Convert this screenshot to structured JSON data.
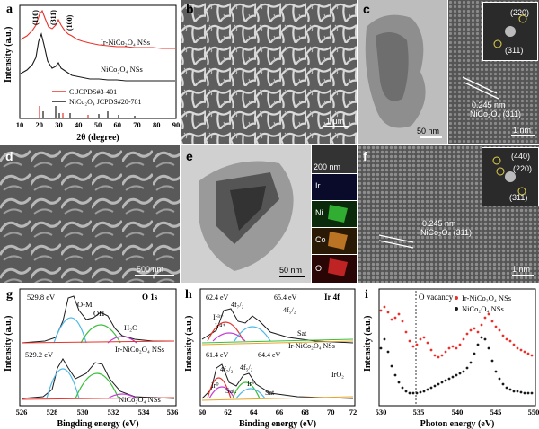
{
  "panels": {
    "a": {
      "label": "a",
      "ylabel": "Intensity (a.u.)",
      "xlabel": "2θ (degree)",
      "xticks": [
        "10",
        "20",
        "30",
        "40",
        "50",
        "60",
        "70",
        "80",
        "90"
      ],
      "peaks": [
        "(110)",
        "(311)",
        "(100)"
      ],
      "series": [
        "Ir-NiCo₂O₄ NSs",
        "NiCo₂O₄ NSs"
      ],
      "refs": [
        "C JCPDS#3-401",
        "NiCo₂O₄ JCPDS#20-781"
      ],
      "colors": {
        "ir": "#e8322b",
        "nico": "#1a1a1a",
        "ref_c": "#e8322b",
        "ref_n": "#1a1a1a"
      }
    },
    "b": {
      "label": "b",
      "scale": "1 μm"
    },
    "c": {
      "label": "c",
      "scale_left": "50 nm",
      "scale_right": "1 nm",
      "lattice": "0.245 nm",
      "plane": "NiCo₂O₄ (311)",
      "fft": [
        "(220)",
        "(311)"
      ]
    },
    "d": {
      "label": "d",
      "scale": "500 nm"
    },
    "e": {
      "label": "e",
      "scale": "50 nm",
      "map_scale": "200 nm",
      "maps": [
        {
          "el": "Ir",
          "color": "#3a56c9"
        },
        {
          "el": "Ni",
          "color": "#3bcf3b"
        },
        {
          "el": "Co",
          "color": "#e08a2c"
        },
        {
          "el": "O",
          "color": "#e52a2a"
        }
      ]
    },
    "f": {
      "label": "f",
      "scale": "1 nm",
      "lattice": "0.245 nm",
      "plane": "NiCo₂O₄ (311)",
      "fft": [
        "(440)",
        "(220)",
        "(311)"
      ]
    },
    "g": {
      "label": "g",
      "title": "O 1s",
      "xlabel": "Bingding energy (eV)",
      "ylabel": "Intensity (a.u.)",
      "xticks": [
        "526",
        "528",
        "530",
        "532",
        "534",
        "536"
      ],
      "peaks_top": [
        "529.8 eV",
        "O-M",
        "OH",
        "H₂O"
      ],
      "peak_bottom": "529.2 eV",
      "series": [
        "Ir-NiCo₂O₄ NSs",
        "NiCo₂O₄ NSs"
      ]
    },
    "h": {
      "label": "h",
      "title": "Ir 4f",
      "xlabel": "Binding energy (eV)",
      "ylabel": "Intensity (a.u.)",
      "xticks": [
        "60",
        "62",
        "64",
        "66",
        "68",
        "70",
        "72"
      ],
      "top": [
        "62.4 eV",
        "4f₇/₂",
        "Ir³⁺",
        "Ir⁴⁺",
        "65.4 eV",
        "4f₅/₂",
        "Sat"
      ],
      "bottom": [
        "61.4 eV",
        "4f₇/₂",
        "4f₅/₂",
        "64.4 eV",
        "Ir⁰",
        "Ir⁰",
        "Sat.",
        "Sat"
      ],
      "series": [
        "Ir-NiCo₂O₄ NSs",
        "IrO₂"
      ]
    },
    "i": {
      "label": "i",
      "xlabel": "Photon energy (eV)",
      "ylabel": "Intensity (a.u.)",
      "xticks": [
        "530",
        "535",
        "540",
        "545",
        "550"
      ],
      "annotation": "O vacancy",
      "series": [
        "Ir-NiCo₂O₄ NSs",
        "NiCo₂O₄ NSs"
      ],
      "colors": {
        "ir": "#e8322b",
        "nico": "#1a1a1a"
      }
    }
  }
}
